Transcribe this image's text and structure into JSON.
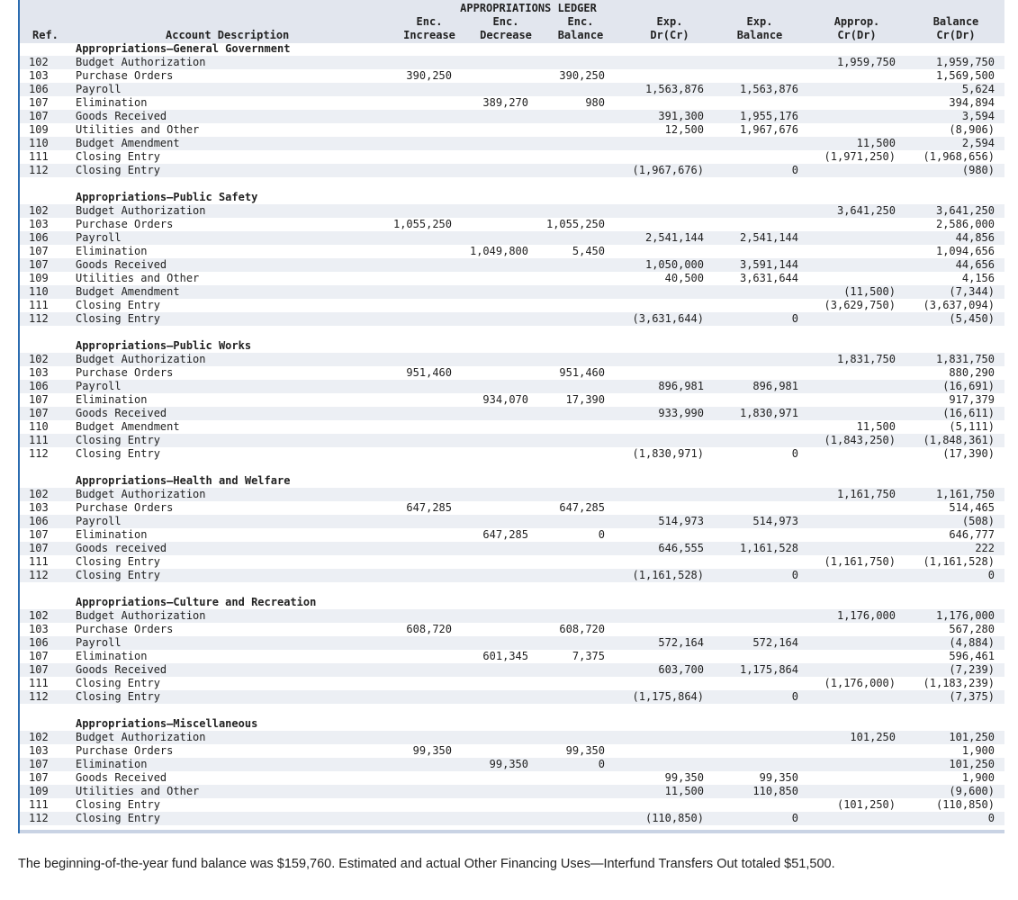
{
  "header": {
    "group_title": "APPROPRIATIONS LEDGER",
    "ref": "Ref.",
    "description": "Account Description",
    "enc_increase": [
      "Enc.",
      "Increase"
    ],
    "enc_decrease": [
      "Enc.",
      "Decrease"
    ],
    "enc_balance": [
      "Enc.",
      "Balance"
    ],
    "exp_drcr": [
      "Exp.",
      "Dr(Cr)"
    ],
    "exp_balance": [
      "Exp.",
      "Balance"
    ],
    "approp_crdr": [
      "Approp.",
      "Cr(Dr)"
    ],
    "balance_crdr": [
      "Balance",
      "Cr(Dr)"
    ]
  },
  "sections": [
    {
      "title": "Appropriations—General Government",
      "rows": [
        [
          "102",
          "Budget Authorization",
          "",
          "",
          "",
          "",
          "",
          "1,959,750",
          "1,959,750"
        ],
        [
          "103",
          "Purchase Orders",
          "390,250",
          "",
          "390,250",
          "",
          "",
          "",
          "1,569,500"
        ],
        [
          "106",
          "Payroll",
          "",
          "",
          "",
          "1,563,876",
          "1,563,876",
          "",
          "5,624"
        ],
        [
          "107",
          "Elimination",
          "",
          "389,270",
          "980",
          "",
          "",
          "",
          "394,894"
        ],
        [
          "107",
          "Goods Received",
          "",
          "",
          "",
          "391,300",
          "1,955,176",
          "",
          "3,594"
        ],
        [
          "109",
          "Utilities and Other",
          "",
          "",
          "",
          "12,500",
          "1,967,676",
          "",
          "(8,906)"
        ],
        [
          "110",
          "Budget Amendment",
          "",
          "",
          "",
          "",
          "",
          "11,500",
          "2,594"
        ],
        [
          "111",
          "Closing Entry",
          "",
          "",
          "",
          "",
          "",
          "(1,971,250)",
          "(1,968,656)"
        ],
        [
          "112",
          "Closing Entry",
          "",
          "",
          "",
          "(1,967,676)",
          "0",
          "",
          "(980)"
        ]
      ]
    },
    {
      "title": "Appropriations—Public Safety",
      "rows": [
        [
          "102",
          "Budget Authorization",
          "",
          "",
          "",
          "",
          "",
          "3,641,250",
          "3,641,250"
        ],
        [
          "103",
          "Purchase Orders",
          "1,055,250",
          "",
          "1,055,250",
          "",
          "",
          "",
          "2,586,000"
        ],
        [
          "106",
          "Payroll",
          "",
          "",
          "",
          "2,541,144",
          "2,541,144",
          "",
          "44,856"
        ],
        [
          "107",
          "Elimination",
          "",
          "1,049,800",
          "5,450",
          "",
          "",
          "",
          "1,094,656"
        ],
        [
          "107",
          "Goods Received",
          "",
          "",
          "",
          "1,050,000",
          "3,591,144",
          "",
          "44,656"
        ],
        [
          "109",
          "Utilities and Other",
          "",
          "",
          "",
          "40,500",
          "3,631,644",
          "",
          "4,156"
        ],
        [
          "110",
          "Budget Amendment",
          "",
          "",
          "",
          "",
          "",
          "(11,500)",
          "(7,344)"
        ],
        [
          "111",
          "Closing Entry",
          "",
          "",
          "",
          "",
          "",
          "(3,629,750)",
          "(3,637,094)"
        ],
        [
          "112",
          "Closing Entry",
          "",
          "",
          "",
          "(3,631,644)",
          "0",
          "",
          "(5,450)"
        ]
      ]
    },
    {
      "title": "Appropriations—Public Works",
      "rows": [
        [
          "102",
          "Budget Authorization",
          "",
          "",
          "",
          "",
          "",
          "1,831,750",
          "1,831,750"
        ],
        [
          "103",
          "Purchase Orders",
          "951,460",
          "",
          "951,460",
          "",
          "",
          "",
          "880,290"
        ],
        [
          "106",
          "Payroll",
          "",
          "",
          "",
          "896,981",
          "896,981",
          "",
          "(16,691)"
        ],
        [
          "107",
          "Elimination",
          "",
          "934,070",
          "17,390",
          "",
          "",
          "",
          "917,379"
        ],
        [
          "107",
          "Goods Received",
          "",
          "",
          "",
          "933,990",
          "1,830,971",
          "",
          "(16,611)"
        ],
        [
          "110",
          "Budget Amendment",
          "",
          "",
          "",
          "",
          "",
          "11,500",
          "(5,111)"
        ],
        [
          "111",
          "Closing Entry",
          "",
          "",
          "",
          "",
          "",
          "(1,843,250)",
          "(1,848,361)"
        ],
        [
          "112",
          "Closing Entry",
          "",
          "",
          "",
          "(1,830,971)",
          "0",
          "",
          "(17,390)"
        ]
      ]
    },
    {
      "title": "Appropriations—Health and Welfare",
      "rows": [
        [
          "102",
          "Budget Authorization",
          "",
          "",
          "",
          "",
          "",
          "1,161,750",
          "1,161,750"
        ],
        [
          "103",
          "Purchase Orders",
          "647,285",
          "",
          "647,285",
          "",
          "",
          "",
          "514,465"
        ],
        [
          "106",
          "Payroll",
          "",
          "",
          "",
          "514,973",
          "514,973",
          "",
          "(508)"
        ],
        [
          "107",
          "Elimination",
          "",
          "647,285",
          "0",
          "",
          "",
          "",
          "646,777"
        ],
        [
          "107",
          "Goods received",
          "",
          "",
          "",
          "646,555",
          "1,161,528",
          "",
          "222"
        ],
        [
          "111",
          "Closing Entry",
          "",
          "",
          "",
          "",
          "",
          "(1,161,750)",
          "(1,161,528)"
        ],
        [
          "112",
          "Closing Entry",
          "",
          "",
          "",
          "(1,161,528)",
          "0",
          "",
          "0"
        ]
      ]
    },
    {
      "title": "Appropriations—Culture and Recreation",
      "rows": [
        [
          "102",
          "Budget Authorization",
          "",
          "",
          "",
          "",
          "",
          "1,176,000",
          "1,176,000"
        ],
        [
          "103",
          "Purchase Orders",
          "608,720",
          "",
          "608,720",
          "",
          "",
          "",
          "567,280"
        ],
        [
          "106",
          "Payroll",
          "",
          "",
          "",
          "572,164",
          "572,164",
          "",
          "(4,884)"
        ],
        [
          "107",
          "Elimination",
          "",
          "601,345",
          "7,375",
          "",
          "",
          "",
          "596,461"
        ],
        [
          "107",
          "Goods Received",
          "",
          "",
          "",
          "603,700",
          "1,175,864",
          "",
          "(7,239)"
        ],
        [
          "111",
          "Closing Entry",
          "",
          "",
          "",
          "",
          "",
          "(1,176,000)",
          "(1,183,239)"
        ],
        [
          "112",
          "Closing Entry",
          "",
          "",
          "",
          "(1,175,864)",
          "0",
          "",
          "(7,375)"
        ]
      ]
    },
    {
      "title": "Appropriations—Miscellaneous",
      "rows": [
        [
          "102",
          "Budget Authorization",
          "",
          "",
          "",
          "",
          "",
          "101,250",
          "101,250"
        ],
        [
          "103",
          "Purchase Orders",
          "99,350",
          "",
          "99,350",
          "",
          "",
          "",
          "1,900"
        ],
        [
          "107",
          "Elimination",
          "",
          "99,350",
          "0",
          "",
          "",
          "",
          "101,250"
        ],
        [
          "107",
          "Goods Received",
          "",
          "",
          "",
          "99,350",
          "99,350",
          "",
          "1,900"
        ],
        [
          "109",
          "Utilities and Other",
          "",
          "",
          "",
          "11,500",
          "110,850",
          "",
          "(9,600)"
        ],
        [
          "111",
          "Closing Entry",
          "",
          "",
          "",
          "",
          "",
          "(101,250)",
          "(110,850)"
        ],
        [
          "112",
          "Closing Entry",
          "",
          "",
          "",
          "(110,850)",
          "0",
          "",
          "0"
        ]
      ]
    }
  ],
  "note": "The beginning-of-the-year fund balance was $159,760. Estimated and actual Other Financing Uses—Interfund Transfers Out totaled $51,500."
}
